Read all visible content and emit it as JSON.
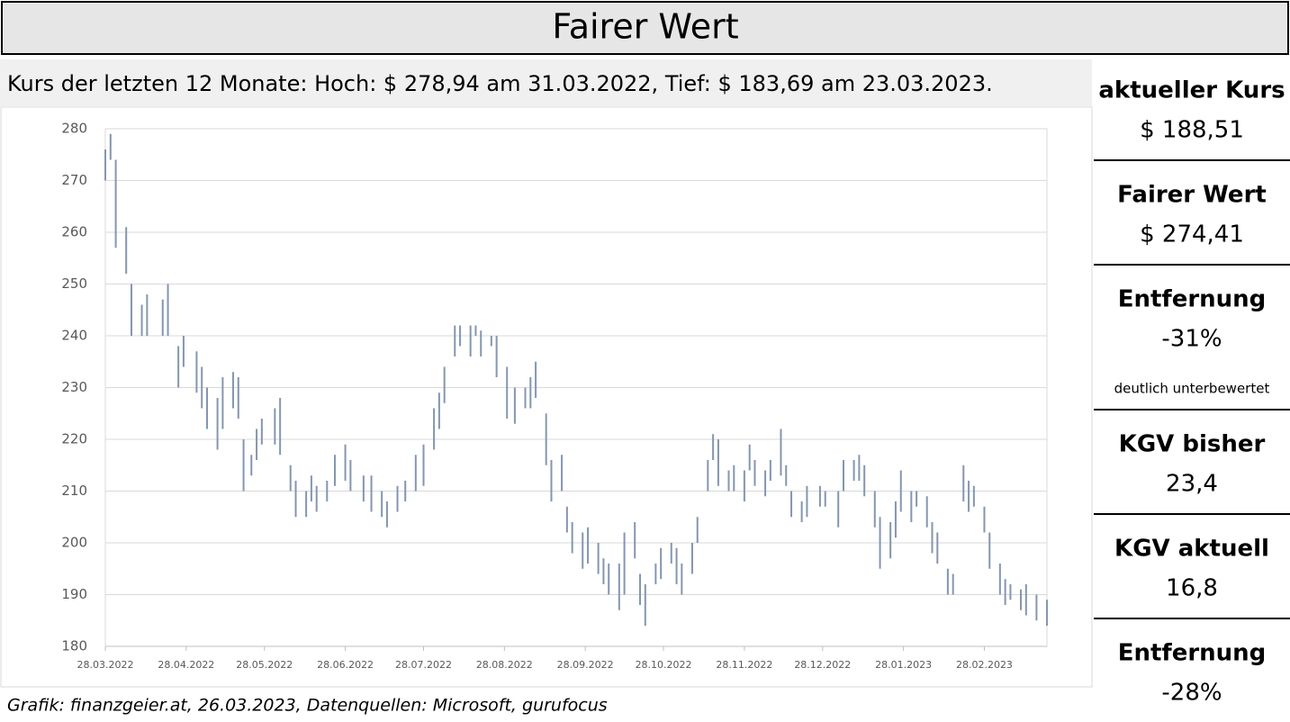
{
  "header": {
    "title": "Fairer Wert",
    "subtitle": "Kurs der letzten 12 Monate: Hoch: $ 278,94 am 31.03.2022, Tief: $ 183,69 am 23.03.2023."
  },
  "chart_data": {
    "type": "range-bar",
    "color": "#8496b0",
    "grid": true,
    "x": [
      "2022-03-28",
      "2022-03-30",
      "2022-04-01",
      "2022-04-05",
      "2022-04-07",
      "2022-04-11",
      "2022-04-13",
      "2022-04-19",
      "2022-04-21",
      "2022-04-25",
      "2022-04-27",
      "2022-05-02",
      "2022-05-04",
      "2022-05-06",
      "2022-05-10",
      "2022-05-12",
      "2022-05-16",
      "2022-05-18",
      "2022-05-20",
      "2022-05-23",
      "2022-05-25",
      "2022-05-27",
      "2022-06-01",
      "2022-06-03",
      "2022-06-07",
      "2022-06-09",
      "2022-06-13",
      "2022-06-15",
      "2022-06-17",
      "2022-06-21",
      "2022-06-24",
      "2022-06-28",
      "2022-06-30",
      "2022-07-05",
      "2022-07-08",
      "2022-07-12",
      "2022-07-14",
      "2022-07-18",
      "2022-07-21",
      "2022-07-25",
      "2022-07-28",
      "2022-08-01",
      "2022-08-03",
      "2022-08-05",
      "2022-08-09",
      "2022-08-11",
      "2022-08-15",
      "2022-08-17",
      "2022-08-19",
      "2022-08-23",
      "2022-08-25",
      "2022-08-29",
      "2022-09-01",
      "2022-09-05",
      "2022-09-07",
      "2022-09-09",
      "2022-09-13",
      "2022-09-15",
      "2022-09-19",
      "2022-09-21",
      "2022-09-23",
      "2022-09-27",
      "2022-09-29",
      "2022-10-03",
      "2022-10-05",
      "2022-10-07",
      "2022-10-11",
      "2022-10-13",
      "2022-10-17",
      "2022-10-19",
      "2022-10-21",
      "2022-10-25",
      "2022-10-27",
      "2022-10-31",
      "2022-11-02",
      "2022-11-04",
      "2022-11-08",
      "2022-11-10",
      "2022-11-14",
      "2022-11-16",
      "2022-11-18",
      "2022-11-22",
      "2022-11-24",
      "2022-11-28",
      "2022-11-30",
      "2022-12-02",
      "2022-12-06",
      "2022-12-08",
      "2022-12-12",
      "2022-12-14",
      "2022-12-16",
      "2022-12-20",
      "2022-12-22",
      "2022-12-27",
      "2022-12-29",
      "2023-01-03",
      "2023-01-05",
      "2023-01-09",
      "2023-01-11",
      "2023-01-13",
      "2023-01-17",
      "2023-01-19",
      "2023-01-23",
      "2023-01-25",
      "2023-01-27",
      "2023-01-31",
      "2023-02-02",
      "2023-02-06",
      "2023-02-08",
      "2023-02-10",
      "2023-02-14",
      "2023-02-16",
      "2023-02-20",
      "2023-02-22",
      "2023-02-24",
      "2023-02-28",
      "2023-03-02",
      "2023-03-06",
      "2023-03-08",
      "2023-03-10",
      "2023-03-14",
      "2023-03-16",
      "2023-03-20",
      "2023-03-24"
    ],
    "high": [
      276,
      279,
      274,
      261,
      250,
      246,
      248,
      247,
      250,
      238,
      240,
      237,
      234,
      230,
      228,
      232,
      233,
      232,
      220,
      217,
      222,
      224,
      226,
      228,
      215,
      212,
      210,
      213,
      211,
      212,
      217,
      219,
      216,
      213,
      213,
      210,
      208,
      211,
      212,
      217,
      219,
      226,
      229,
      234,
      242,
      242,
      242,
      242,
      241,
      240,
      240,
      234,
      230,
      230,
      232,
      235,
      225,
      216,
      217,
      207,
      204,
      202,
      203,
      200,
      197,
      196,
      196,
      202,
      204,
      194,
      192,
      196,
      199,
      200,
      199,
      196,
      200,
      205,
      216,
      221,
      220,
      214,
      215,
      214,
      219,
      216,
      214,
      216,
      222,
      215,
      210,
      208,
      211,
      211,
      210,
      210,
      216,
      216,
      217,
      215,
      210,
      205,
      204,
      208,
      214,
      210,
      210,
      209,
      204,
      202,
      195,
      194,
      215,
      212,
      211,
      207,
      202,
      196,
      193,
      192,
      191,
      192,
      190,
      189
    ],
    "low": [
      270,
      274,
      257,
      252,
      240,
      240,
      240,
      240,
      240,
      230,
      234,
      229,
      226,
      222,
      218,
      222,
      226,
      224,
      210,
      213,
      216,
      219,
      219,
      217,
      210,
      205,
      205,
      208,
      206,
      208,
      211,
      212,
      210,
      208,
      206,
      205,
      203,
      206,
      208,
      210,
      211,
      218,
      222,
      227,
      236,
      238,
      236,
      240,
      236,
      238,
      232,
      224,
      223,
      226,
      226,
      228,
      215,
      208,
      210,
      202,
      198,
      195,
      196,
      194,
      192,
      190,
      187,
      190,
      197,
      188,
      184,
      192,
      193,
      196,
      192,
      190,
      194,
      200,
      210,
      216,
      211,
      210,
      210,
      208,
      214,
      211,
      209,
      212,
      213,
      211,
      205,
      204,
      205,
      207,
      207,
      203,
      210,
      212,
      212,
      209,
      203,
      195,
      197,
      201,
      206,
      204,
      207,
      203,
      198,
      196,
      190,
      190,
      208,
      206,
      207,
      202,
      195,
      190,
      188,
      189,
      187,
      186,
      185,
      184
    ],
    "xlim": [
      "2022-03-28",
      "2023-03-24"
    ],
    "xticks": [
      {
        "value": "2022-03-28",
        "label": "28.03.2022"
      },
      {
        "value": "2022-04-28",
        "label": "28.04.2022"
      },
      {
        "value": "2022-05-28",
        "label": "28.05.2022"
      },
      {
        "value": "2022-06-28",
        "label": "28.06.2022"
      },
      {
        "value": "2022-07-28",
        "label": "28.07.2022"
      },
      {
        "value": "2022-08-28",
        "label": "28.08.2022"
      },
      {
        "value": "2022-09-28",
        "label": "28.09.2022"
      },
      {
        "value": "2022-10-28",
        "label": "28.10.2022"
      },
      {
        "value": "2022-11-28",
        "label": "28.11.2022"
      },
      {
        "value": "2022-12-28",
        "label": "28.12.2022"
      },
      {
        "value": "2023-01-28",
        "label": "28.01.2023"
      },
      {
        "value": "2023-02-28",
        "label": "28.02.2023"
      }
    ],
    "ylim": [
      180,
      280
    ],
    "yticks": [
      180,
      190,
      200,
      210,
      220,
      230,
      240,
      250,
      260,
      270,
      280
    ]
  },
  "panel": [
    {
      "label": "aktueller Kurs",
      "value": "$ 188,51"
    },
    {
      "label": "Fairer Wert",
      "value": "$ 274,41"
    },
    {
      "label": "Entfernung",
      "value": "-31%",
      "note": "deutlich unterbewertet"
    },
    {
      "label": "KGV bisher",
      "value": "23,4"
    },
    {
      "label": "KGV aktuell",
      "value": "16,8"
    },
    {
      "label": "Entfernung",
      "value": "-28%"
    }
  ],
  "footer": "Grafik: finanzgeier.at, 26.03.2023, Datenquellen: Microsoft, gurufocus"
}
